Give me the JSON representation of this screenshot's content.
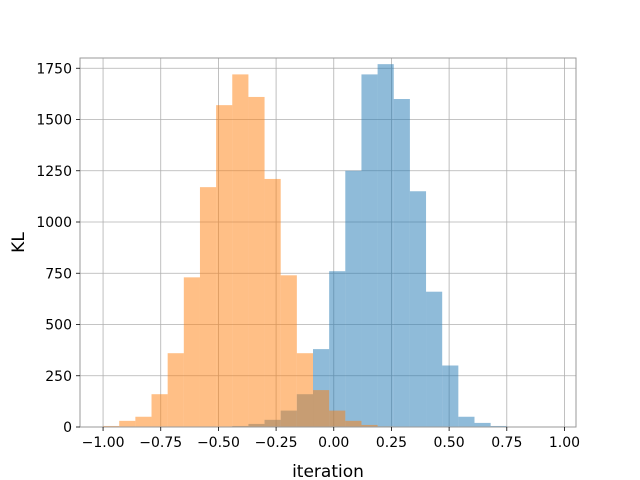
{
  "chart_data": {
    "type": "bar",
    "title": "",
    "xlabel": "iteration",
    "ylabel": "KL",
    "xlim": [
      -1.1,
      1.05
    ],
    "ylim": [
      0,
      1800
    ],
    "xticks": [
      -1.0,
      -0.75,
      -0.5,
      -0.25,
      0.0,
      0.25,
      0.5,
      0.75,
      1.0
    ],
    "xtick_labels": [
      "−1.00",
      "−0.75",
      "−0.50",
      "−0.25",
      "0.00",
      "0.25",
      "0.50",
      "0.75",
      "1.00"
    ],
    "yticks": [
      0,
      250,
      500,
      750,
      1000,
      1250,
      1500,
      1750
    ],
    "ytick_labels": [
      "0",
      "250",
      "500",
      "750",
      "1000",
      "1250",
      "1500",
      "1750"
    ],
    "grid": true,
    "bin_edges": [
      -1.0,
      -0.93,
      -0.86,
      -0.79,
      -0.72,
      -0.65,
      -0.58,
      -0.51,
      -0.44,
      -0.37,
      -0.3,
      -0.23,
      -0.16,
      -0.09,
      -0.02,
      0.05,
      0.12,
      0.19,
      0.26,
      0.33,
      0.4,
      0.47,
      0.54,
      0.61,
      0.68,
      0.75,
      0.82,
      0.89,
      0.96
    ],
    "series": [
      {
        "color": "#1f77b4",
        "opacity": 0.5,
        "values": [
          0,
          0,
          0,
          0,
          0,
          0,
          0,
          2,
          5,
          15,
          35,
          80,
          160,
          380,
          760,
          1250,
          1720,
          1770,
          1600,
          1150,
          660,
          300,
          50,
          20,
          5,
          0,
          0,
          0
        ]
      },
      {
        "color": "#ff7f0e",
        "opacity": 0.5,
        "values": [
          5,
          30,
          50,
          160,
          360,
          730,
          1170,
          1570,
          1720,
          1610,
          1210,
          740,
          360,
          180,
          80,
          30,
          10,
          3,
          0,
          0,
          0,
          0,
          0,
          0,
          0,
          0,
          0,
          0
        ]
      }
    ]
  }
}
